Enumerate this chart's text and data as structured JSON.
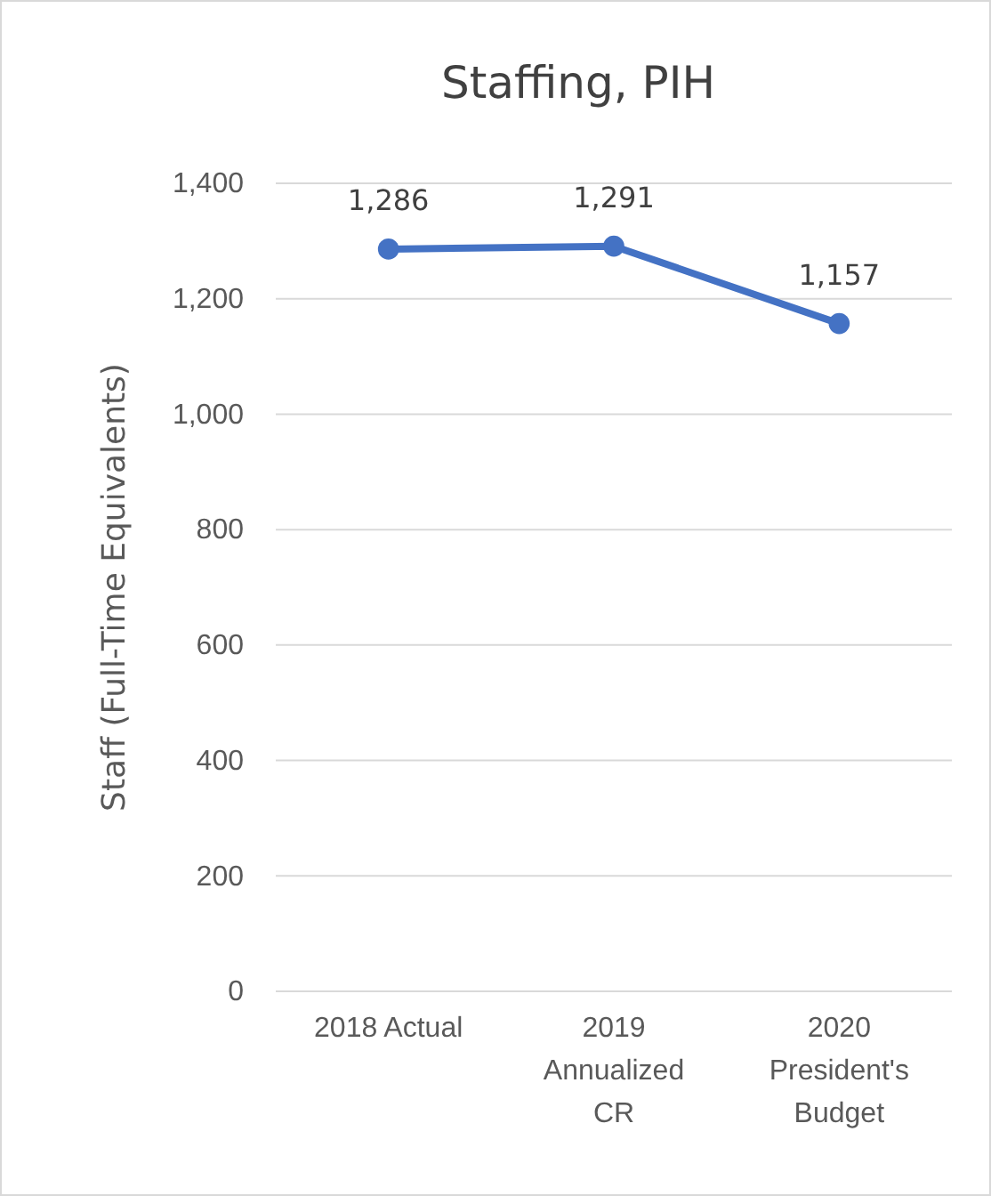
{
  "chart_data": {
    "type": "line",
    "title": "Staffing, PIH",
    "ylabel": "Staff (Full-Time Equivalents)",
    "categories": [
      "2018 Actual",
      "2019 Annualized CR",
      "2020 President's Budget"
    ],
    "series": [
      {
        "color": "#4472c4",
        "values": [
          1286,
          1291,
          1157
        ],
        "value_labels": [
          "1,286",
          "1,291",
          "1,157"
        ]
      }
    ],
    "ylim": [
      0,
      1400
    ],
    "yticks": [
      0,
      200,
      400,
      600,
      800,
      {
        "value": 1000,
        "label": "1,000"
      },
      {
        "value": 1200,
        "label": "1,200"
      },
      {
        "value": 1400,
        "label": "1,400"
      }
    ],
    "grid": "y",
    "marker": "circle",
    "line_style": "solid"
  }
}
